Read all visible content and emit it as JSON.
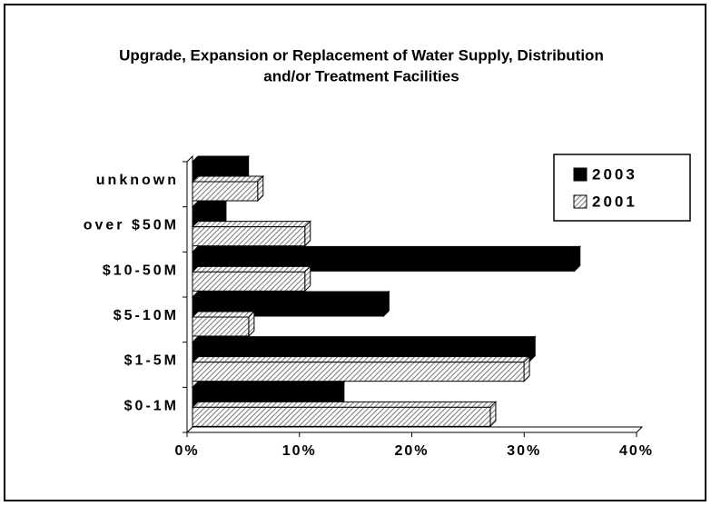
{
  "chart_data": {
    "type": "hbar",
    "title": [
      "Upgrade, Expansion or Replacement of Water Supply, Distribution",
      "and/or Treatment Facilities"
    ],
    "categories": [
      "unknown",
      "over $50M",
      "$10-50M",
      "$5-10M",
      "$1-5M",
      "$0-1M"
    ],
    "series": [
      {
        "name": "2003",
        "color": "#000000",
        "values": [
          4.5,
          2.5,
          34,
          17,
          30,
          13
        ]
      },
      {
        "name": "2001",
        "color": "#808080",
        "hatched": true,
        "values": [
          5.8,
          10,
          10,
          5,
          29.5,
          26.5
        ]
      }
    ],
    "xlim": [
      0,
      40
    ],
    "xticks": [
      {
        "value": 0,
        "label": "0%"
      },
      {
        "value": 10,
        "label": "10%"
      },
      {
        "value": 20,
        "label": "20%"
      },
      {
        "value": 30,
        "label": "30%"
      },
      {
        "value": 40,
        "label": "40%"
      }
    ],
    "legend": "top-right",
    "grid": false
  }
}
